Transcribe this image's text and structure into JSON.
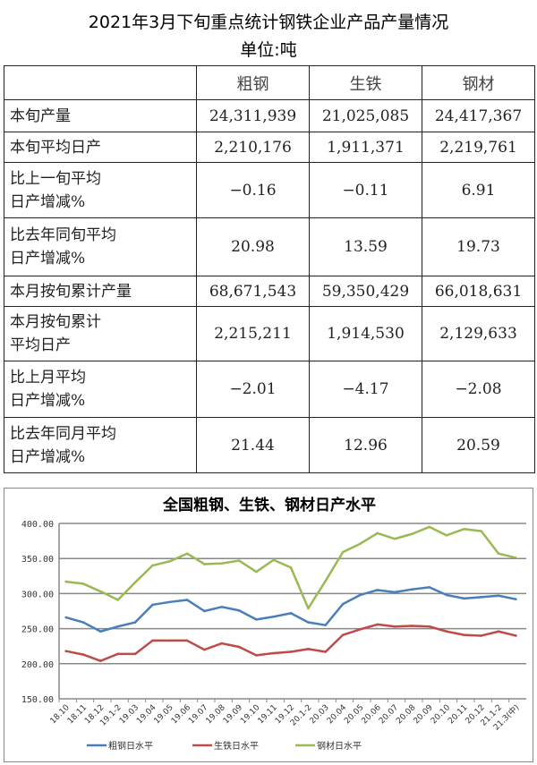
{
  "title": "2021年3月下旬重点统计钢铁企业产品产量情况",
  "unit": "单位:吨",
  "table": {
    "headers": [
      "",
      "粗钢",
      "生铁",
      "钢材"
    ],
    "rows": [
      {
        "label": "本旬产量",
        "values": [
          "24,311,939",
          "21,025,085",
          "24,417,367"
        ]
      },
      {
        "label": "本旬平均日产",
        "values": [
          "2,210,176",
          "1,911,371",
          "2,219,761"
        ]
      },
      {
        "label": "比上一旬平均\n日产增减%",
        "values": [
          "−0.16",
          "−0.11",
          "6.91"
        ]
      },
      {
        "label": "比去年同旬平均\n日产增减%",
        "values": [
          "20.98",
          "13.59",
          "19.73"
        ]
      },
      {
        "label": "本月按旬累计产量",
        "values": [
          "68,671,543",
          "59,350,429",
          "66,018,631"
        ]
      },
      {
        "label": "本月按旬累计\n平均日产",
        "values": [
          "2,215,211",
          "1,914,530",
          "2,129,633"
        ]
      },
      {
        "label": "比上月平均\n日产增减%",
        "values": [
          "−2.01",
          "−4.17",
          "−2.08"
        ]
      },
      {
        "label": "比去年同月平均\n日产增减%",
        "values": [
          "21.44",
          "12.96",
          "20.59"
        ]
      }
    ]
  },
  "chart_data": {
    "type": "line",
    "title": "全国粗钢、生铁、钢材日产水平",
    "ylim": [
      150,
      400
    ],
    "yticks": [
      "150.00",
      "200.00",
      "250.00",
      "300.00",
      "350.00",
      "400.00"
    ],
    "grid": true,
    "legend": "bottom",
    "categories": [
      "18.10",
      "18.11",
      "18.12",
      "19.1-2",
      "19.03",
      "19.04",
      "19.05",
      "19.06",
      "19.07",
      "19.08",
      "19.09",
      "19.10",
      "19.11",
      "19.12",
      "20.1-2",
      "20.03",
      "20.04",
      "20.05",
      "20.06",
      "20.07",
      "20.08",
      "20.09",
      "20.10",
      "20.11",
      "20.12",
      "21.1-2",
      "21.3(中)"
    ],
    "series": [
      {
        "name": "粗钢日水平",
        "color": "#4a7ebb",
        "values": [
          266,
          259,
          246,
          253,
          259,
          284,
          288,
          291,
          275,
          281,
          276,
          263,
          267,
          272,
          259,
          255,
          285,
          298,
          305,
          302,
          306,
          309,
          298,
          293,
          295,
          297,
          292
        ]
      },
      {
        "name": "生铁日水平",
        "color": "#be4b48",
        "values": [
          218,
          213,
          204,
          214,
          214,
          233,
          233,
          233,
          220,
          229,
          224,
          212,
          215,
          217,
          221,
          217,
          241,
          249,
          256,
          253,
          254,
          253,
          246,
          241,
          240,
          246,
          240
        ]
      },
      {
        "name": "钢材日水平",
        "color": "#98b954",
        "values": [
          317,
          314,
          303,
          291,
          316,
          340,
          346,
          357,
          342,
          343,
          347,
          331,
          348,
          337,
          279,
          318,
          359,
          371,
          386,
          378,
          385,
          395,
          383,
          392,
          389,
          357,
          351
        ]
      }
    ]
  }
}
